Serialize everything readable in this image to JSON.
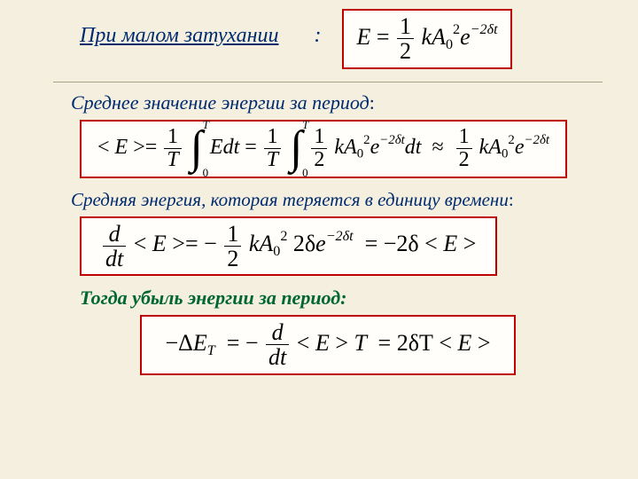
{
  "colors": {
    "page_bg": "#f4efdf",
    "box_border": "#c00000",
    "heading_blue": "#002b6e",
    "heading_green": "#006633"
  },
  "typography": {
    "family": "Times New Roman",
    "heading_fontsize_pt": 18,
    "formula_fontsize_pt": 20
  },
  "headings": {
    "h1": "При малом затухании",
    "h2": "Среднее значение энергии за период",
    "h3": "Средняя энергия, которая теряется в единицу времени",
    "h4": "Тогда  убыль  энергии  за  период:",
    "colon": ":"
  },
  "formulas": {
    "energy": {
      "lhs": "E",
      "eq": "=",
      "half_num": "1",
      "half_den": "2",
      "k": "k",
      "A": "A",
      "A_sub": "0",
      "A_sup": "2",
      "e": "e",
      "exp": "−2δt"
    },
    "mean_energy": {
      "lt": "<",
      "E": "E",
      "gt": ">",
      "eq": "=",
      "one": "1",
      "T": "T",
      "int_upper": "T",
      "int_lower": "0",
      "Edt": "Edt",
      "half_num": "1",
      "half_den": "2",
      "k": "k",
      "A": "A",
      "A_sub": "0",
      "A_sup": "2",
      "e": "e",
      "exp": "−2δt",
      "dt": "dt",
      "approx": "≈"
    },
    "loss_rate": {
      "d": "d",
      "dt": "dt",
      "lt": "<",
      "E": "E",
      "gt": ">",
      "eq": "=",
      "minus": "−",
      "half_num": "1",
      "half_den": "2",
      "k": "k",
      "A": "A",
      "A_sub": "0",
      "A_sup": "2",
      "twodelta": "2δ",
      "e": "e",
      "exp": "−2δt",
      "eq2": "=",
      "m2d": "−2δ"
    },
    "loss_period": {
      "minus": "−",
      "Delta": "Δ",
      "E": "E",
      "T": "T",
      "eq": "=",
      "d": "d",
      "dt": "dt",
      "lt": "<",
      "gt": ">",
      "eq2": "=",
      "two_delta_T": "2δT"
    }
  }
}
